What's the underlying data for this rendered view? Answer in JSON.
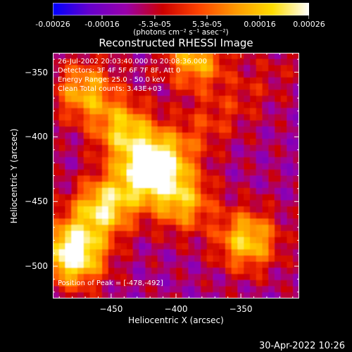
{
  "colorbar": {
    "tick_labels": [
      "-0.00026",
      "-0.00016",
      "-5.3e-05",
      "5.3e-05",
      "0.00016",
      "0.00026"
    ],
    "tick_values": [
      -0.00026,
      -0.00016,
      -5.3e-05,
      5.3e-05,
      0.00016,
      0.00026
    ],
    "units": "(photons cm⁻² s⁻¹ asec⁻²)",
    "range": [
      -0.00026,
      0.00026
    ],
    "colors": [
      "#0000ff",
      "#6600cc",
      "#9900aa",
      "#cc0000",
      "#ff4400",
      "#ff9900",
      "#ffdd00",
      "#ffffff"
    ]
  },
  "chart_data": {
    "type": "heatmap",
    "title": "Reconstructed RHESSI Image",
    "xlabel": "Heliocentric X (arcsec)",
    "ylabel": "Heliocentric Y (arcsec)",
    "xlim": [
      -495,
      -305
    ],
    "ylim": [
      -525,
      -335
    ],
    "x_ticks": [
      -450,
      -400,
      -350
    ],
    "y_ticks": [
      -350,
      -400,
      -450,
      -500
    ],
    "info_lines": [
      "26-Jul-2002 20:03:40.000 to 20:08:36.000",
      "Detectors: 3F 4F 5F 6F 7F 8F, Att 0",
      "Energy Range: 25.0 - 50.0 keV",
      "Clean     Total counts: 3.43E+03"
    ],
    "peak_label": "Position of Peak = [-478,-492]",
    "peak_position": [
      -478,
      -492
    ],
    "bright_features": [
      {
        "x": -418,
        "y": -424,
        "value": 0.00024
      },
      {
        "x": -478,
        "y": -492,
        "value": 0.00026
      },
      {
        "x": -345,
        "y": -480,
        "value": 0.00018
      },
      {
        "x": -440,
        "y": -395,
        "value": 0.00016
      },
      {
        "x": -470,
        "y": -365,
        "value": 0.00014
      },
      {
        "x": -385,
        "y": -340,
        "value": 0.00015
      },
      {
        "x": -395,
        "y": -450,
        "value": 0.00014
      },
      {
        "x": -455,
        "y": -455,
        "value": 0.00012
      }
    ],
    "grid": false
  },
  "footer": {
    "date": "30-Apr-2022 10:26"
  }
}
